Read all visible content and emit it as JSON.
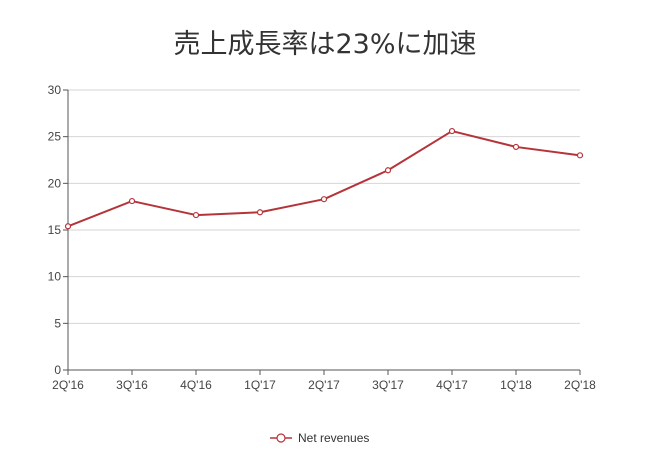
{
  "chart_data": {
    "type": "line",
    "title": "売上成長率は23%に加速",
    "categories": [
      "2Q'16",
      "3Q'16",
      "4Q'16",
      "1Q'17",
      "2Q'17",
      "3Q'17",
      "4Q'17",
      "1Q'18",
      "2Q'18"
    ],
    "series": [
      {
        "name": "Net revenues",
        "values": [
          15.4,
          18.1,
          16.6,
          16.9,
          18.3,
          21.4,
          25.6,
          23.9,
          23.0
        ]
      }
    ],
    "ylim": [
      0,
      30
    ],
    "yticks": [
      0,
      5,
      10,
      15,
      20,
      25,
      30
    ],
    "grid": true,
    "legend": "bottom-center",
    "colors": {
      "series": "#b5343a",
      "grid": "#d6d6d6",
      "axis": "#555555"
    }
  }
}
